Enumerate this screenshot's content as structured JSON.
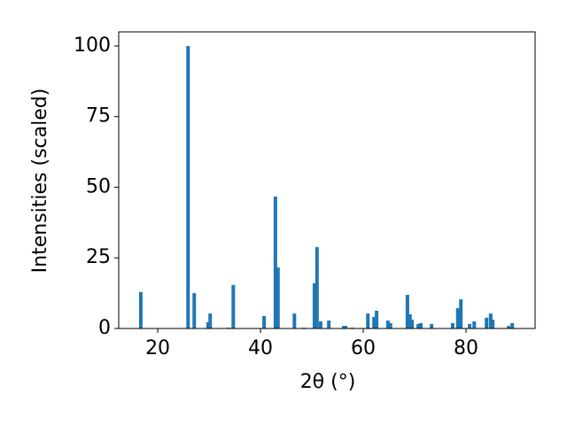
{
  "chart_data": {
    "type": "bar",
    "xlabel": "2θ (°)",
    "ylabel": "Intensities (scaled)",
    "x": [
      16.7,
      25.9,
      27.1,
      29.8,
      30.2,
      33.8,
      34.7,
      40.7,
      42.9,
      43.4,
      46.6,
      48.4,
      50.5,
      51.0,
      51.7,
      53.3,
      56.2,
      56.6,
      57.9,
      60.9,
      62.1,
      62.6,
      64.8,
      65.3,
      68.6,
      69.1,
      69.5,
      70.7,
      71.2,
      73.3,
      77.4,
      78.4,
      79.0,
      80.7,
      81.6,
      84.0,
      84.8,
      85.2,
      88.3,
      89.0
    ],
    "values": [
      12.9,
      100,
      12.5,
      2.2,
      5.3,
      0.3,
      15.4,
      4.4,
      46.7,
      21.6,
      5.3,
      0.3,
      16.0,
      28.8,
      2.5,
      2.8,
      0.9,
      0.9,
      0.3,
      5.3,
      4.1,
      6.3,
      2.8,
      1.9,
      11.9,
      5.0,
      3.1,
      1.6,
      1.9,
      1.6,
      1.9,
      7.2,
      10.3,
      1.6,
      2.5,
      3.8,
      5.3,
      3.1,
      0.9,
      1.9
    ],
    "color": "#1f77b4",
    "xlim": [
      12.4,
      93.45
    ],
    "ylim": [
      0,
      105
    ],
    "xticks": [
      20,
      40,
      60,
      80
    ],
    "yticks": [
      0,
      25,
      50,
      75,
      100
    ]
  }
}
